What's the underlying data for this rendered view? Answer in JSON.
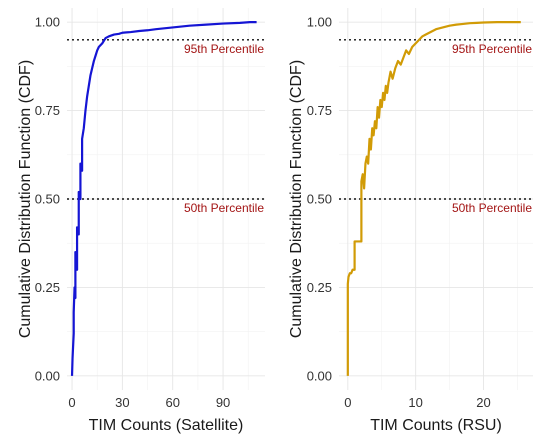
{
  "chart_data": [
    {
      "type": "line",
      "xlabel": "TIM Counts (Satellite)",
      "ylabel": "Cumulative Distribution Function (CDF)",
      "xlim": [
        -3,
        115
      ],
      "ylim": [
        -0.04,
        1.04
      ],
      "xticks": [
        0,
        30,
        60,
        90
      ],
      "yticks": [
        0.0,
        0.25,
        0.5,
        0.75,
        1.0
      ],
      "ytick_labels": [
        "0.00",
        "0.25",
        "0.50",
        "0.75",
        "1.00"
      ],
      "grid": true,
      "line_color": "#1515d4",
      "reference_lines": [
        {
          "y": 0.95,
          "label": "95th Percentile",
          "color": "#a31515"
        },
        {
          "y": 0.5,
          "label": "50th Percentile",
          "color": "#a31515"
        }
      ],
      "series": [
        {
          "x": [
            0,
            0.3,
            1,
            1,
            1.5,
            2,
            2,
            3,
            3,
            4,
            4,
            5,
            5,
            6,
            6,
            7,
            8,
            9,
            10,
            11,
            12,
            13,
            14,
            15,
            16,
            18,
            20,
            22,
            25,
            28,
            30,
            35,
            40,
            45,
            50,
            60,
            70,
            80,
            90,
            100,
            106,
            110
          ],
          "y": [
            0,
            0.05,
            0.12,
            0.18,
            0.25,
            0.22,
            0.35,
            0.3,
            0.42,
            0.4,
            0.52,
            0.5,
            0.6,
            0.58,
            0.67,
            0.7,
            0.75,
            0.79,
            0.82,
            0.85,
            0.87,
            0.89,
            0.905,
            0.92,
            0.93,
            0.94,
            0.955,
            0.96,
            0.965,
            0.967,
            0.97,
            0.972,
            0.975,
            0.977,
            0.98,
            0.985,
            0.99,
            0.993,
            0.996,
            0.998,
            1.0,
            1.0
          ]
        }
      ]
    },
    {
      "type": "line",
      "xlabel": "TIM Counts (RSU)",
      "ylabel": "Cumulative Distribution Function (CDF)",
      "xlim": [
        -1.3,
        27.3
      ],
      "ylim": [
        -0.04,
        1.04
      ],
      "xticks": [
        0,
        10,
        20
      ],
      "yticks": [
        0.0,
        0.25,
        0.5,
        0.75,
        1.0
      ],
      "ytick_labels": [
        "0.00",
        "0.25",
        "0.50",
        "0.75",
        "1.00"
      ],
      "grid": true,
      "line_color": "#d19b06",
      "reference_lines": [
        {
          "y": 0.95,
          "label": "95th Percentile",
          "color": "#a31515"
        },
        {
          "y": 0.5,
          "label": "50th Percentile",
          "color": "#a31515"
        }
      ],
      "series": [
        {
          "x": [
            0,
            0,
            0.1,
            0.3,
            0.5,
            0.7,
            1,
            1,
            1.2,
            1.5,
            1.7,
            2,
            2,
            2.2,
            2.4,
            2.6,
            2.8,
            3,
            3.2,
            3.4,
            3.6,
            3.8,
            4,
            4.2,
            4.4,
            4.6,
            4.8,
            5,
            5.2,
            5.4,
            5.6,
            5.8,
            6,
            6.3,
            6.6,
            7,
            7.4,
            7.8,
            8.2,
            8.6,
            9,
            9.5,
            10,
            10.5,
            11,
            11.5,
            12,
            13,
            14,
            15,
            16,
            17,
            18,
            19,
            20,
            22,
            24,
            25.5
          ],
          "y": [
            0,
            0.26,
            0.28,
            0.29,
            0.29,
            0.3,
            0.3,
            0.38,
            0.38,
            0.38,
            0.38,
            0.38,
            0.55,
            0.57,
            0.53,
            0.6,
            0.62,
            0.6,
            0.67,
            0.64,
            0.7,
            0.68,
            0.72,
            0.7,
            0.76,
            0.73,
            0.78,
            0.76,
            0.8,
            0.78,
            0.82,
            0.8,
            0.83,
            0.86,
            0.84,
            0.87,
            0.89,
            0.88,
            0.9,
            0.92,
            0.91,
            0.93,
            0.94,
            0.95,
            0.96,
            0.965,
            0.97,
            0.98,
            0.985,
            0.99,
            0.993,
            0.995,
            0.997,
            0.998,
            0.999,
            1.0,
            1.0,
            1.0
          ]
        }
      ]
    }
  ]
}
